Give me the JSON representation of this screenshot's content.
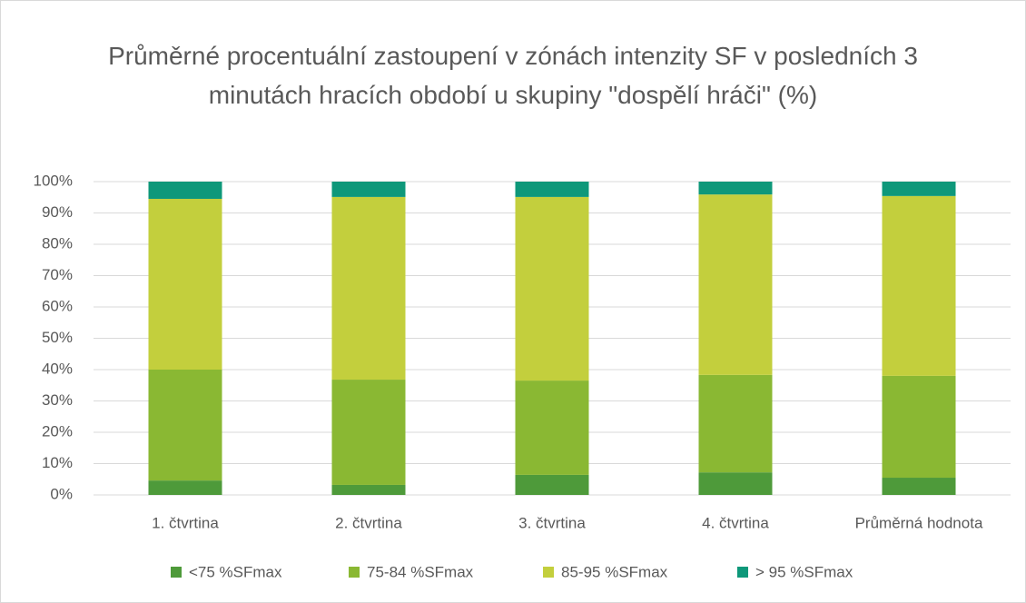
{
  "chart_data": {
    "type": "stacked_bar",
    "title": "Průměrné procentuální zastoupení v zónách intenzity SF v posledních 3 minutách hracích období u skupiny \"dospělí hráči\" (%)",
    "categories": [
      "1. čtvrtina",
      "2. čtvrtina",
      "3. čtvrtina",
      "4. čtvrtina",
      "Průměrná hodnota"
    ],
    "series": [
      {
        "name": "<75 %SFmax",
        "color": "#4e9a3a",
        "values": [
          4.6,
          3.2,
          6.4,
          7.2,
          5.5
        ]
      },
      {
        "name": "75-84 %SFmax",
        "color": "#8ab833",
        "values": [
          35.4,
          33.6,
          30.1,
          31.1,
          32.5
        ]
      },
      {
        "name": "85-95 %SFmax",
        "color": "#c3cf3d",
        "values": [
          54.5,
          58.3,
          58.6,
          57.6,
          57.4
        ]
      },
      {
        "name": "> 95 %SFmax",
        "color": "#0e987a",
        "values": [
          5.5,
          4.9,
          4.9,
          4.1,
          4.6
        ]
      }
    ],
    "ylim": [
      0,
      100
    ],
    "yticks": [
      {
        "value": 0,
        "label": "0%"
      },
      {
        "value": 10,
        "label": "10%"
      },
      {
        "value": 20,
        "label": "20%"
      },
      {
        "value": 30,
        "label": "30%"
      },
      {
        "value": 40,
        "label": "40%"
      },
      {
        "value": 50,
        "label": "50%"
      },
      {
        "value": 60,
        "label": "60%"
      },
      {
        "value": 70,
        "label": "70%"
      },
      {
        "value": 80,
        "label": "80%"
      },
      {
        "value": 90,
        "label": "90%"
      },
      {
        "value": 100,
        "label": "100%"
      }
    ],
    "grid": true,
    "legend": "bottom"
  }
}
